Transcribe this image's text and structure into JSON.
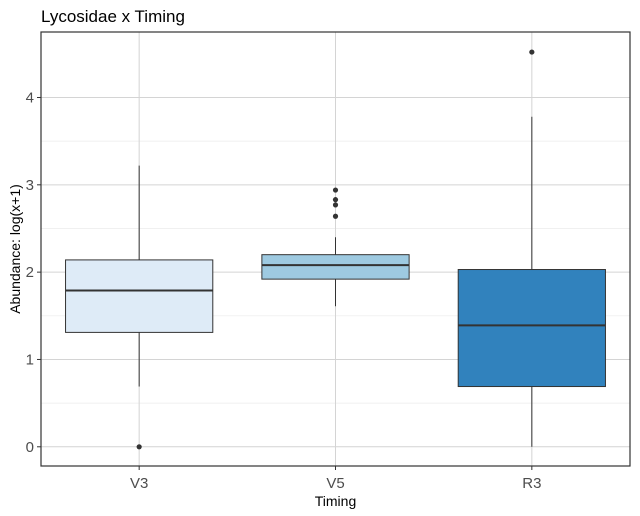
{
  "chart_data": {
    "type": "boxplot",
    "title": "Lycosidae x Timing",
    "xlabel": "Timing",
    "ylabel": "Abundance: log(x+1)",
    "ylim": [
      -0.22,
      4.75
    ],
    "yticks": [
      0,
      1,
      2,
      3,
      4
    ],
    "categories": [
      "V3",
      "V5",
      "R3"
    ],
    "grid": true,
    "legend": "none",
    "boxes": [
      {
        "category": "V3",
        "fill": "#deebf7",
        "lower_whisker": 0.69,
        "q1": 1.31,
        "median": 1.79,
        "q3": 2.14,
        "upper_whisker": 3.22,
        "outliers": [
          0.0
        ]
      },
      {
        "category": "V5",
        "fill": "#9ecae1",
        "lower_whisker": 1.61,
        "q1": 1.92,
        "median": 2.08,
        "q3": 2.2,
        "upper_whisker": 2.4,
        "outliers": [
          2.64,
          2.77,
          2.83,
          2.94
        ]
      },
      {
        "category": "R3",
        "fill": "#3182bd",
        "lower_whisker": 0.0,
        "q1": 0.69,
        "median": 1.39,
        "q3": 2.03,
        "upper_whisker": 3.78,
        "outliers": [
          4.52
        ]
      }
    ]
  }
}
